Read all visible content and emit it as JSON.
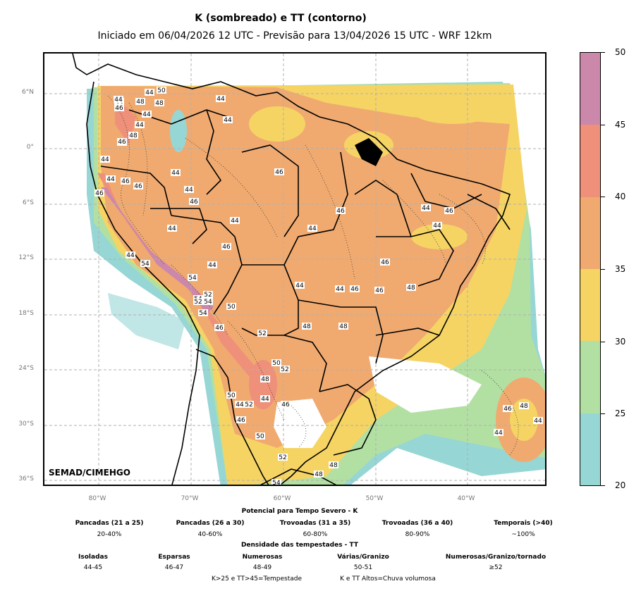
{
  "title": "K (sombreado) e TT (contorno)",
  "subtitle": "Iniciado em 06/04/2026 12 UTC - Previsão para 13/04/2026 15 UTC - WRF 12km",
  "credit": "SEMAD/CIMEHGO",
  "lat_labels": [
    "6°N",
    "0°",
    "6°S",
    "12°S",
    "18°S",
    "24°S",
    "30°S",
    "36°S"
  ],
  "lon_labels": [
    "80°W",
    "70°W",
    "60°W",
    "50°W",
    "40°W"
  ],
  "colorbar": {
    "ticks": [
      "50",
      "45",
      "40",
      "35",
      "30",
      "25",
      "20"
    ],
    "colors": [
      "#cc88aa",
      "#ee907a",
      "#f0aa70",
      "#f5d464",
      "#b2e0a2",
      "#96d6d4"
    ]
  },
  "contour_labels": [
    "44",
    "50",
    "44",
    "48",
    "46",
    "48",
    "44",
    "44",
    "44",
    "46",
    "48",
    "46",
    "44",
    "44",
    "46",
    "46",
    "46",
    "44",
    "44",
    "46",
    "44",
    "46",
    "44",
    "44",
    "46",
    "46",
    "44",
    "44",
    "46",
    "46",
    "44",
    "44",
    "54",
    "54",
    "44",
    "54",
    "52",
    "52",
    "54",
    "50",
    "54",
    "44",
    "44",
    "44",
    "46",
    "46",
    "48",
    "48",
    "48",
    "46",
    "52",
    "50",
    "52",
    "48",
    "50",
    "44",
    "52",
    "44",
    "46",
    "46",
    "50",
    "52",
    "48",
    "48",
    "54",
    "46",
    "48",
    "44",
    "44"
  ],
  "legend": {
    "k_title": "Potencial para Tempo Severo - K",
    "k_cols": [
      {
        "label": "Pancadas (21 a 25)",
        "value": "20-40%"
      },
      {
        "label": "Pancadas (26 a 30)",
        "value": "40-60%"
      },
      {
        "label": "Trovoadas (31 a 35)",
        "value": "60-80%"
      },
      {
        "label": "Trovoadas (36 a 40)",
        "value": "80-90%"
      },
      {
        "label": "Temporais (>40)",
        "value": "~100%"
      }
    ],
    "tt_title": "Densidade das tempestades - TT",
    "tt_cols": [
      {
        "label": "Isoladas",
        "value": "44-45"
      },
      {
        "label": "Esparsas",
        "value": "46-47"
      },
      {
        "label": "Numerosas",
        "value": "48-49"
      },
      {
        "label": "Várias/Granizo",
        "value": "50-51"
      },
      {
        "label": "Numerosas/Granizo/tornado",
        "value": "≥52"
      }
    ],
    "note1": "K>25 e TT>45=Tempestade",
    "note2": "K e TT Altos=Chuva volumosa"
  }
}
